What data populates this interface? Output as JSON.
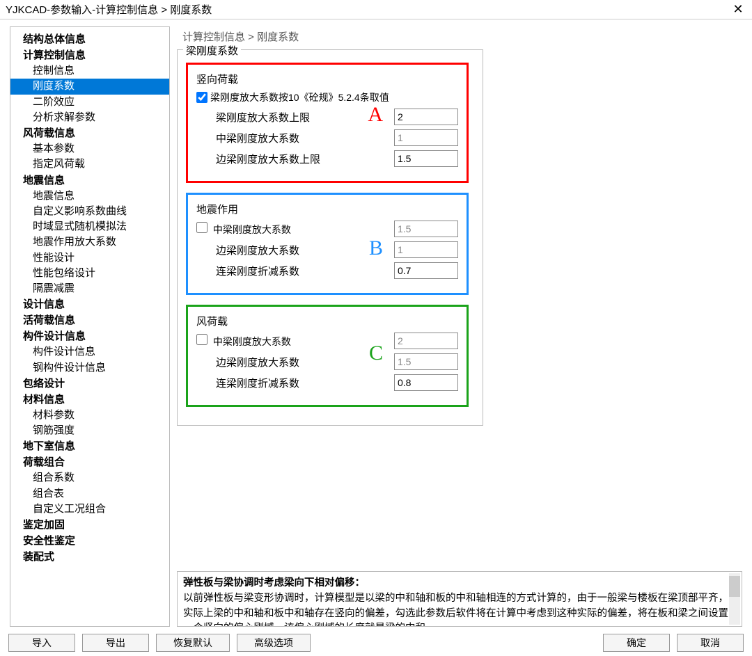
{
  "titlebar": {
    "title": "YJKCAD-参数输入-计算控制信息 > 刚度系数"
  },
  "breadcrumb": "计算控制信息 > 刚度系数",
  "sidebar": {
    "groups": [
      {
        "label": "结构总体信息",
        "items": []
      },
      {
        "label": "计算控制信息",
        "items": [
          {
            "label": "控制信息"
          },
          {
            "label": "刚度系数",
            "selected": true
          },
          {
            "label": "二阶效应"
          },
          {
            "label": "分析求解参数"
          }
        ]
      },
      {
        "label": "风荷载信息",
        "items": [
          {
            "label": "基本参数"
          },
          {
            "label": "指定风荷载"
          }
        ]
      },
      {
        "label": "地震信息",
        "items": [
          {
            "label": "地震信息"
          },
          {
            "label": "自定义影响系数曲线"
          },
          {
            "label": "时域显式随机模拟法"
          },
          {
            "label": "地震作用放大系数"
          },
          {
            "label": "性能设计"
          },
          {
            "label": "性能包络设计"
          },
          {
            "label": "隔震减震"
          }
        ]
      },
      {
        "label": "设计信息",
        "items": []
      },
      {
        "label": "活荷载信息",
        "items": []
      },
      {
        "label": "构件设计信息",
        "items": [
          {
            "label": "构件设计信息"
          },
          {
            "label": "钢构件设计信息"
          }
        ]
      },
      {
        "label": "包络设计",
        "items": []
      },
      {
        "label": "材料信息",
        "items": [
          {
            "label": "材料参数"
          },
          {
            "label": "钢筋强度"
          }
        ]
      },
      {
        "label": "地下室信息",
        "items": []
      },
      {
        "label": "荷载组合",
        "items": [
          {
            "label": "组合系数"
          },
          {
            "label": "组合表"
          },
          {
            "label": "自定义工况组合"
          }
        ]
      },
      {
        "label": "鉴定加固",
        "items": []
      },
      {
        "label": "安全性鉴定",
        "items": []
      },
      {
        "label": "装配式",
        "items": []
      }
    ]
  },
  "outer_legend": "梁刚度系数",
  "panels": {
    "A": {
      "border_color": "#ff0000",
      "letter": "A",
      "legend": "竖向荷载",
      "checkbox": {
        "checked": true,
        "label": "梁刚度放大系数按10《砼规》5.2.4条取值"
      },
      "rows": [
        {
          "label": "梁刚度放大系数上限",
          "value": "2",
          "disabled": false
        },
        {
          "label": "中梁刚度放大系数",
          "value": "1",
          "disabled": true
        },
        {
          "label": "边梁刚度放大系数上限",
          "value": "1.5",
          "disabled": false
        }
      ]
    },
    "B": {
      "border_color": "#1e90ff",
      "letter": "B",
      "legend": "地震作用",
      "checkbox": {
        "checked": false,
        "label": "中梁刚度放大系数"
      },
      "rows": [
        {
          "label": "",
          "value": "1.5",
          "disabled": true,
          "inline_with_checkbox": true
        },
        {
          "label": "边梁刚度放大系数",
          "value": "1",
          "disabled": true
        },
        {
          "label": "连梁刚度折减系数",
          "value": "0.7",
          "disabled": false
        }
      ]
    },
    "C": {
      "border_color": "#1aa31a",
      "letter": "C",
      "legend": "风荷载",
      "checkbox": {
        "checked": false,
        "label": "中梁刚度放大系数"
      },
      "rows": [
        {
          "label": "",
          "value": "2",
          "disabled": true,
          "inline_with_checkbox": true
        },
        {
          "label": "边梁刚度放大系数",
          "value": "1.5",
          "disabled": true
        },
        {
          "label": "连梁刚度折减系数",
          "value": "0.8",
          "disabled": false
        }
      ]
    }
  },
  "help": {
    "title": "弹性板与梁协调时考虑梁向下相对偏移：",
    "body": "以前弹性板与梁变形协调时，计算模型是以梁的中和轴和板的中和轴相连的方式计算的，由于一般梁与楼板在梁顶部平齐，实际上梁的中和轴和板中和轴存在竖向的偏差，勾选此参数后软件将在计算中考虑到这种实际的偏差，将在板和梁之间设置一个竖向的偏心刚域，该偏心刚域的长度就是梁的中和"
  },
  "footer": {
    "import": "导入",
    "export": "导出",
    "restore": "恢复默认",
    "advanced": "高级选项",
    "ok": "确定",
    "cancel": "取消"
  }
}
